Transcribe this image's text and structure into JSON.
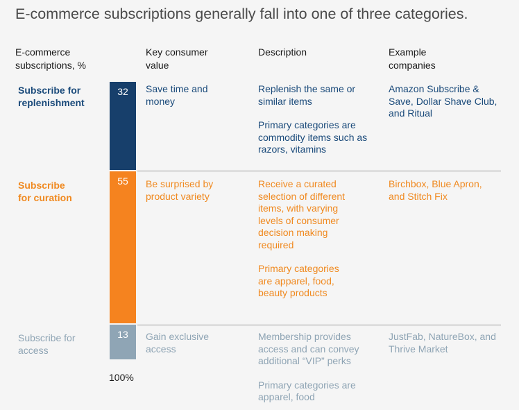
{
  "title": "E-commerce subscriptions generally fall into one of three categories.",
  "headers": {
    "col1": "E-commerce subscriptions, %",
    "col2": "Key consumer value",
    "col3": "Description",
    "col4": "Example companies"
  },
  "total_label": "100%",
  "colors": {
    "replenishment": "#173f6b",
    "curation": "#f5831f",
    "access": "#8fa5b5"
  },
  "chart_data": {
    "type": "bar",
    "stacked": true,
    "orientation": "vertical",
    "categories": [
      "Subscribe for replenishment",
      "Subscribe for curation",
      "Subscribe for access"
    ],
    "values": [
      32,
      55,
      13
    ],
    "total": "100%",
    "ylabel": "E-commerce subscriptions, %"
  },
  "rows": [
    {
      "label": "Subscribe for replenishment",
      "value": "32",
      "key_value": "Save time and money",
      "description": [
        "Replenish the same or similar items",
        "Primary categories are commodity items such as razors, vitamins"
      ],
      "examples": "Amazon Subscribe & Save, Dollar Shave Club, and Ritual"
    },
    {
      "label": "Subscribe for curation",
      "value": "55",
      "key_value": "Be surprised by product variety",
      "description": [
        "Receive a curated selection of different items, with varying levels of consumer decision making required",
        "Primary categories are apparel, food, beauty products"
      ],
      "examples": "Birchbox, Blue Apron, and Stitch Fix"
    },
    {
      "label": "Subscribe for access",
      "value": "13",
      "key_value": "Gain exclusive access",
      "description": [
        "Membership provides access and can convey additional “VIP” perks",
        "Primary categories are apparel, food"
      ],
      "examples": "JustFab, NatureBox, and Thrive Market"
    }
  ]
}
